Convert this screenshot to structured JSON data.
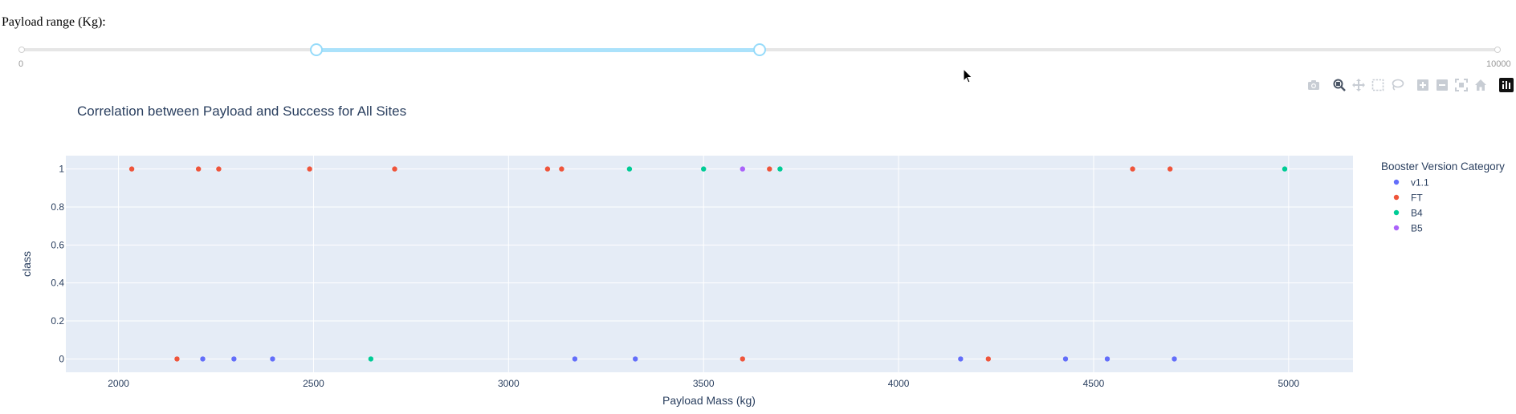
{
  "slider": {
    "label": "Payload range (Kg):",
    "min": 0,
    "max": 10000,
    "value": [
      2000,
      5000
    ],
    "min_label": "0",
    "max_label": "10000"
  },
  "modebar": {
    "buttons": [
      "camera-icon",
      "zoom-icon",
      "pan-icon",
      "box-select-icon",
      "lasso-icon",
      "zoom-in-icon",
      "zoom-out-icon",
      "autoscale-icon",
      "home-icon",
      "plotly-logo-icon"
    ]
  },
  "chart_data": {
    "type": "scatter",
    "title": "Correlation between Payload and Success for All Sites",
    "xlabel": "Payload Mass (kg)",
    "ylabel": "class",
    "xlim": [
      1865,
      5165
    ],
    "ylim": [
      -0.07,
      1.07
    ],
    "xticks": [
      2000,
      2500,
      3000,
      3500,
      4000,
      4500,
      5000
    ],
    "xtick_labels": [
      "2000",
      "2500",
      "3000",
      "3500",
      "4000",
      "4500",
      "5000"
    ],
    "yticks": [
      0,
      0.2,
      0.4,
      0.6,
      0.8,
      1
    ],
    "ytick_labels": [
      "0",
      "0.2",
      "0.4",
      "0.6",
      "0.8",
      "1"
    ],
    "grid": true,
    "legend_title": "Booster Version Category",
    "legend_position": "right",
    "series": [
      {
        "name": "v1.1",
        "color": "#636efa",
        "points": [
          [
            2216,
            0
          ],
          [
            2296,
            0
          ],
          [
            2395,
            0
          ],
          [
            3170,
            0
          ],
          [
            3325,
            0
          ],
          [
            4159,
            0
          ],
          [
            4428,
            0
          ],
          [
            4535,
            0
          ],
          [
            4707,
            0
          ]
        ]
      },
      {
        "name": "FT",
        "color": "#ef553b",
        "points": [
          [
            2034,
            1
          ],
          [
            2205,
            1
          ],
          [
            2257,
            1
          ],
          [
            2490,
            1
          ],
          [
            2708,
            1
          ],
          [
            3100,
            1
          ],
          [
            3136,
            1
          ],
          [
            3669,
            1
          ],
          [
            4600,
            1
          ],
          [
            4696,
            1
          ],
          [
            2150,
            0
          ],
          [
            3600,
            0
          ],
          [
            4230,
            0
          ]
        ]
      },
      {
        "name": "B4",
        "color": "#00cc96",
        "points": [
          [
            3310,
            1
          ],
          [
            3500,
            1
          ],
          [
            3696,
            1
          ],
          [
            4990,
            1
          ],
          [
            2647,
            0
          ]
        ]
      },
      {
        "name": "B5",
        "color": "#ab63fa",
        "points": [
          [
            3600,
            1
          ]
        ]
      }
    ]
  }
}
